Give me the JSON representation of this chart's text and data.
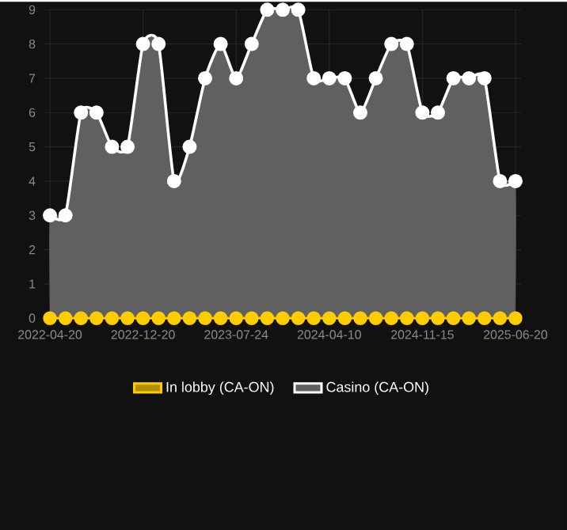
{
  "chart_data": {
    "type": "line",
    "categories": [
      "2022-04-20",
      null,
      null,
      null,
      null,
      null,
      "2022-12-20",
      null,
      null,
      null,
      null,
      null,
      "2023-07-24",
      null,
      null,
      null,
      null,
      null,
      "2024-04-10",
      null,
      null,
      null,
      null,
      null,
      "2024-11-15",
      null,
      null,
      null,
      null,
      null,
      "2025-06-20"
    ],
    "ylim": [
      0,
      9
    ],
    "yticks": [
      0,
      1,
      2,
      3,
      4,
      5,
      6,
      7,
      8,
      9
    ],
    "grid": true,
    "legend": "bottom",
    "marker": "circle",
    "series": [
      {
        "name": "In lobby (CA-ON)",
        "color": "#ffcc00",
        "values": [
          0,
          0,
          0,
          0,
          0,
          0,
          0,
          0,
          0,
          0,
          0,
          0,
          0,
          0,
          0,
          0,
          0,
          0,
          0,
          0,
          0,
          0,
          0,
          0,
          0,
          0,
          0,
          0,
          0,
          0,
          0
        ]
      },
      {
        "name": "Casino (CA-ON)",
        "type": "area",
        "color": "#ffffff",
        "values": [
          3,
          3,
          6,
          6,
          5,
          5,
          8,
          8,
          4,
          5,
          7,
          8,
          7,
          8,
          9,
          9,
          9,
          7,
          7,
          7,
          6,
          7,
          8,
          8,
          6,
          6,
          7,
          7,
          7,
          4,
          4
        ]
      }
    ]
  }
}
